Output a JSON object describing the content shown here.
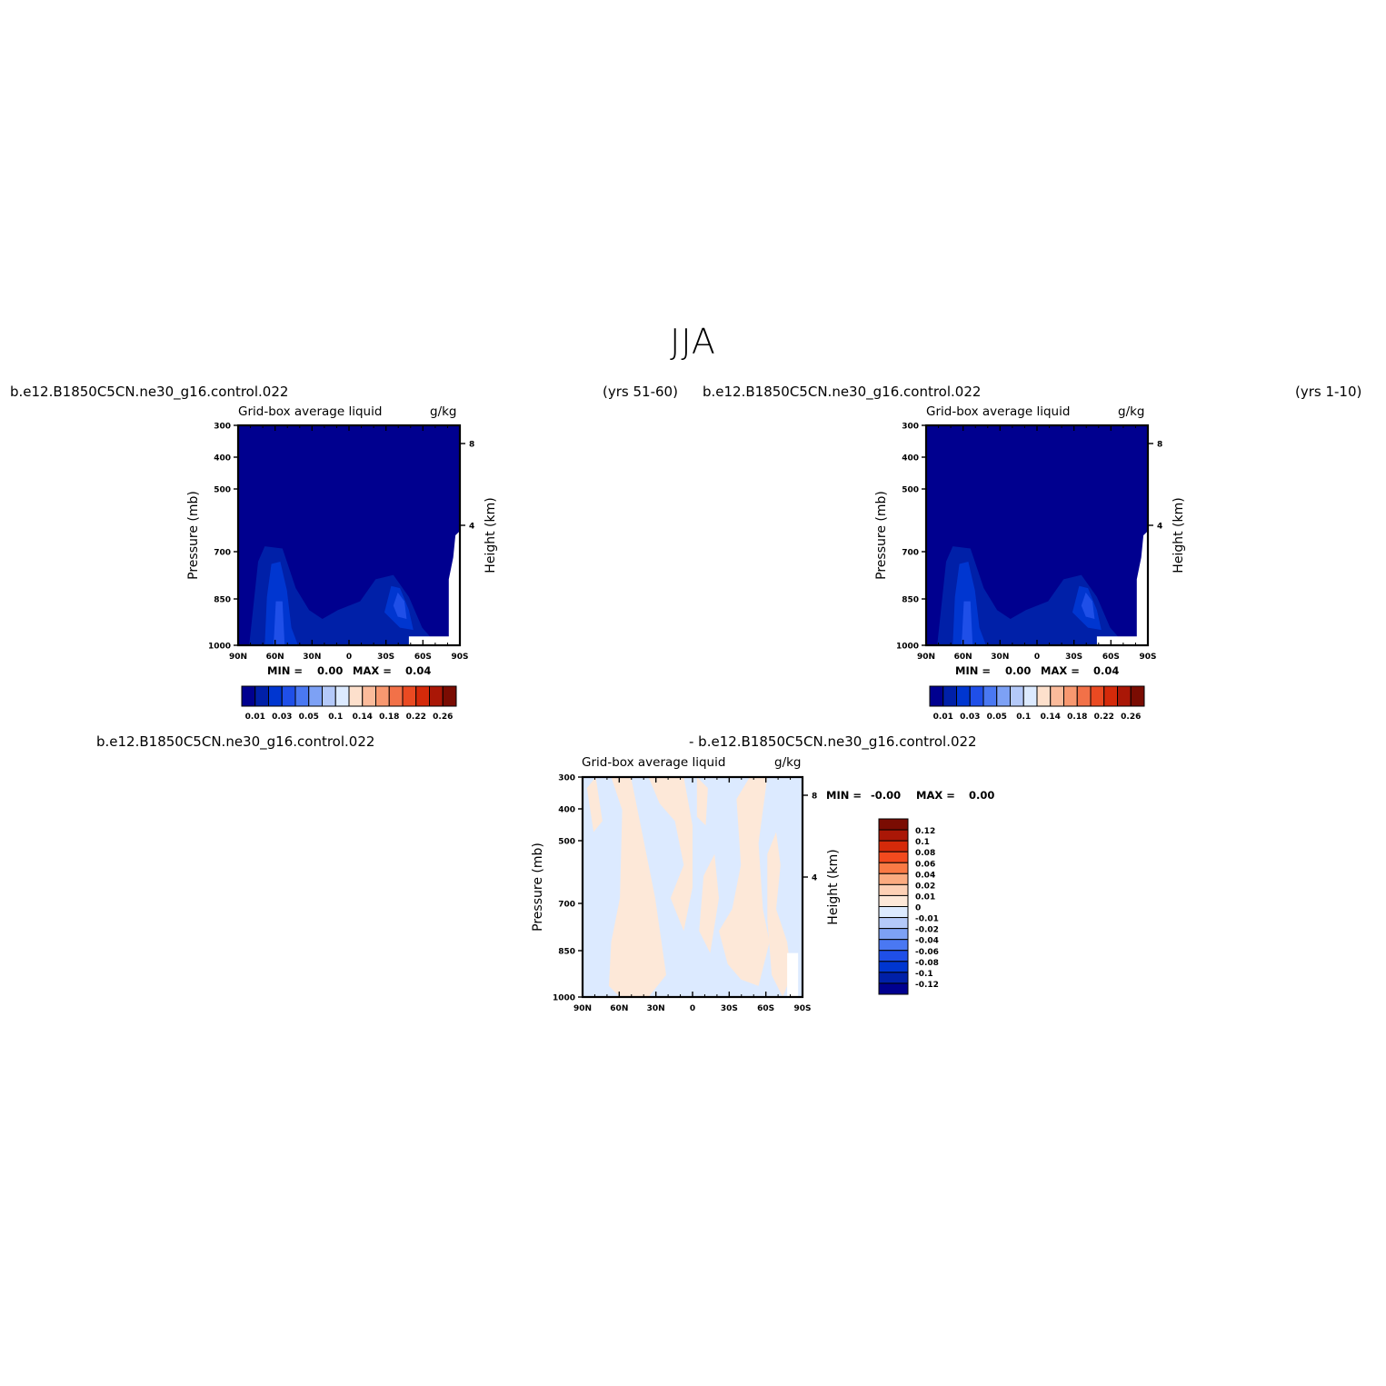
{
  "title": "JJA",
  "panels": [
    {
      "case": "b.e12.B1850C5CN.ne30_g16.control.022",
      "years": "(yrs 51-60)",
      "variable": "Grid-box average liquid",
      "units": "g/kg",
      "min_label": "MIN =",
      "min_value": "0.00",
      "max_label": "MAX =",
      "max_value": "0.04"
    },
    {
      "case": "b.e12.B1850C5CN.ne30_g16.control.022",
      "years": "(yrs 1-10)",
      "variable": "Grid-box average liquid",
      "units": "g/kg",
      "min_label": "MIN =",
      "min_value": "0.00",
      "max_label": "MAX =",
      "max_value": "0.04"
    },
    {
      "case_a": "b.e12.B1850C5CN.ne30_g16.control.022",
      "case_b": "- b.e12.B1850C5CN.ne30_g16.control.022",
      "variable": "Grid-box average liquid",
      "units": "g/kg",
      "min_label": "MIN =",
      "min_value": "-0.00",
      "max_label": "MAX =",
      "max_value": "0.00"
    }
  ],
  "chart_data": [
    {
      "type": "heatmap",
      "title": "Grid-box average liquid",
      "units": "g/kg",
      "xlabel": "",
      "ylabel": "Pressure (mb)",
      "y2label": "Height (km)",
      "x_ticks": [
        "90N",
        "60N",
        "30N",
        "0",
        "30S",
        "60S",
        "90S"
      ],
      "y_ticks": [
        "300",
        "400",
        "500",
        "700",
        "850",
        "1000"
      ],
      "y2_ticks": [
        "8",
        "4"
      ],
      "ylim": [
        1000,
        300
      ],
      "y_scale": "log",
      "colorbar": {
        "orientation": "horizontal",
        "labels": [
          "0.01",
          "0.03",
          "0.05",
          "0.1",
          "0.14",
          "0.18",
          "0.22",
          "0.26"
        ],
        "colors": [
          "#00008f",
          "#0020a8",
          "#0036d0",
          "#1f4fe8",
          "#4a78f2",
          "#7da1f5",
          "#b4c9f9",
          "#dceaff",
          "#fde0cc",
          "#fbbb9b",
          "#f89870",
          "#f27148",
          "#ea4a22",
          "#d52a0a",
          "#aa1706",
          "#7a0c02"
        ]
      }
    },
    {
      "type": "heatmap",
      "title": "Grid-box average liquid",
      "units": "g/kg",
      "xlabel": "",
      "ylabel": "Pressure (mb)",
      "y2label": "Height (km)",
      "x_ticks": [
        "90N",
        "60N",
        "30N",
        "0",
        "30S",
        "60S",
        "90S"
      ],
      "y_ticks": [
        "300",
        "400",
        "500",
        "700",
        "850",
        "1000"
      ],
      "y2_ticks": [
        "8",
        "4"
      ],
      "ylim": [
        1000,
        300
      ],
      "y_scale": "log",
      "colorbar": {
        "orientation": "horizontal",
        "labels": [
          "0.01",
          "0.03",
          "0.05",
          "0.1",
          "0.14",
          "0.18",
          "0.22",
          "0.26"
        ],
        "colors": [
          "#00008f",
          "#0020a8",
          "#0036d0",
          "#1f4fe8",
          "#4a78f2",
          "#7da1f5",
          "#b4c9f9",
          "#dceaff",
          "#fde0cc",
          "#fbbb9b",
          "#f89870",
          "#f27148",
          "#ea4a22",
          "#d52a0a",
          "#aa1706",
          "#7a0c02"
        ]
      }
    },
    {
      "type": "heatmap",
      "title": "Grid-box average liquid",
      "units": "g/kg",
      "xlabel": "",
      "ylabel": "Pressure (mb)",
      "y2label": "Height (km)",
      "x_ticks": [
        "90N",
        "60N",
        "30N",
        "0",
        "30S",
        "60S",
        "90S"
      ],
      "y_ticks": [
        "300",
        "400",
        "500",
        "700",
        "850",
        "1000"
      ],
      "y2_ticks": [
        "8",
        "4"
      ],
      "ylim": [
        1000,
        300
      ],
      "y_scale": "log",
      "colorbar": {
        "orientation": "vertical",
        "labels": [
          "0.12",
          "0.1",
          "0.08",
          "0.06",
          "0.04",
          "0.02",
          "0.01",
          "0",
          "-0.01",
          "-0.02",
          "-0.04",
          "-0.06",
          "-0.08",
          "-0.1",
          "-0.12"
        ],
        "colors": [
          "#7a0c02",
          "#aa1706",
          "#d52a0a",
          "#f24a1e",
          "#f97a45",
          "#fbab80",
          "#fdd0b5",
          "#fde8d8",
          "#dceaff",
          "#b4c9f9",
          "#7da1f5",
          "#4a78f2",
          "#1f4fe8",
          "#0036d0",
          "#0020a8",
          "#00008f"
        ]
      }
    }
  ]
}
